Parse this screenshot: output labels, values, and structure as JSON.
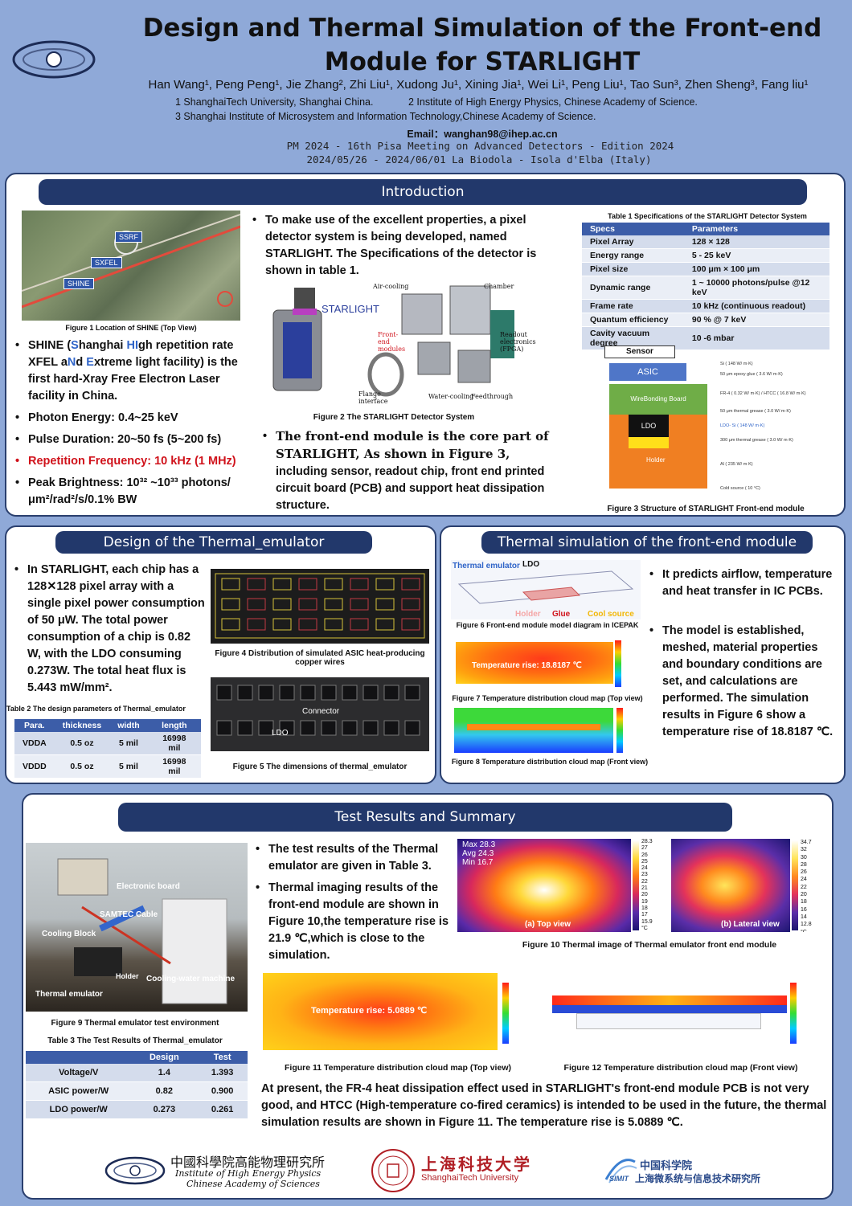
{
  "header": {
    "title_line1": "Design and Thermal Simulation of the Front-end",
    "title_line2": "Module for STARLIGHT",
    "authors": "Han Wang¹, Peng Peng¹, Jie Zhang², Zhi Liu¹, Xudong Ju¹, Xining Jia¹, Wei Li¹, Peng Liu¹, Tao Sun³, Zhen Sheng³, Fang liu¹",
    "affil1": "1 ShanghaiTech University, Shanghai China.",
    "affil2": "2 Institute of High Energy Physics, Chinese Academy of Science.",
    "affil3": "3 Shanghai Institute of Microsystem and Information Technology,Chinese Academy of Science.",
    "email_label": "Email：",
    "email": "wanghan98@ihep.ac.cn",
    "conf1": "PM 2024 - 16th Pisa Meeting on Advanced Detectors - Edition 2024",
    "conf2": "2024/05/26 - 2024/06/01   La Biodola - Isola d'Elba (Italy)"
  },
  "intro": {
    "title": "Introduction",
    "fig1_caption": "Figure 1 Location of SHINE (Top View)",
    "map_labels": [
      "SSRF",
      "SXFEL",
      "SHINE"
    ],
    "shine_bullet": [
      "SHINE (",
      "S",
      "hanghai ",
      "HI",
      "gh repetition rate XFEL a",
      "N",
      "d ",
      "E",
      "xtreme light facility) is the first hard-Xray Free Electron Laser facility in China."
    ],
    "bullets": [
      "Photon Energy: 0.4~25 keV",
      "Pulse Duration: 20~50 fs (5~200 fs)",
      "Repetition Frequency: 10 kHz (1 MHz)",
      "Peak Brightness: 10³² ~10³³ photons/μm²/rad²/s/0.1% BW"
    ],
    "mid_bullet": "To make use of the excellent properties, a pixel detector system is being developed, named STARLIGHT. The Specifications of the detector is shown in table 1.",
    "fig2_labels": [
      "Air-cooling",
      "Chamber",
      "STARLIGHT",
      "Front-end modules",
      "Readout electronics (FPGA)",
      "Flange interface",
      "Water-cooling",
      "Feedthrough"
    ],
    "fig2_caption": "Figure 2 The STARLIGHT Detector System",
    "front_bullet_a": "The front-end module is the core part of STARLIGHT, As shown in Figure 3,",
    "front_bullet_b": "including sensor, readout chip, front end printed circuit board (PCB) and support heat dissipation structure.",
    "table1_caption": "Table 1 Specifications of the STARLIGHT Detector System",
    "table1_headers": [
      "Specs",
      "Parameters"
    ],
    "table1_rows": [
      [
        "Pixel Array",
        "128 × 128"
      ],
      [
        "Energy range",
        "5 - 25 keV"
      ],
      [
        "Pixel size",
        "100 μm × 100 μm"
      ],
      [
        "Dynamic range",
        "1 ~ 10000 photons/pulse @12 keV"
      ],
      [
        "Frame rate",
        "10 kHz (continuous readout)"
      ],
      [
        "Quantum efficiency",
        " 90 % @ 7 keV"
      ],
      [
        "Cavity vacuum degree",
        "10 -6 mbar"
      ]
    ],
    "fig3_labels": {
      "sensor": "Sensor",
      "asic": "ASIC",
      "board": "WireBonding  Board",
      "ldo": "LDO",
      "holder": "Holder",
      "notes": [
        "Si ( 148 W/ m·K)",
        "50 μm epoxy glue ( 3.6 W/ m·K)",
        "FR-4 ( 0.32 W/ m·K) / HTCC ( 16.8 W/ m·K)",
        "50 μm thermal grease ( 3.0 W/ m·K)",
        "LDO- Si ( 148 W/ m·K)",
        "300 μm thermal grease ( 3.0 W/ m·K)",
        "Al ( 235 W/ m·K)",
        "Cold source ( 10 °C)"
      ]
    },
    "fig3_caption": "Figure 3  Structure of STARLIGHT Front-end module"
  },
  "emulator": {
    "title": "Design of the Thermal_emulator",
    "bullet": "In STARLIGHT, each chip has a 128✕128 pixel array with a single pixel power consumption of 50 μW. The total power consumption of a chip is 0.82 W, with the LDO consuming 0.273W. The total heat flux is 5.443 mW/mm².",
    "fig4_caption": "Figure 4 Distribution of simulated ASIC heat-producing copper wires",
    "table2_caption": "Table 2 The design parameters of Thermal_emulator",
    "table2_headers": [
      "Para.",
      "thickness",
      "width",
      "length"
    ],
    "table2_rows": [
      [
        "VDDA",
        "0.5 oz",
        "5 mil",
        "16998 mil"
      ],
      [
        "VDDD",
        "0.5 oz",
        "5 mil",
        "16998 mil"
      ]
    ],
    "fig5_labels": [
      "Connector",
      "LDO"
    ],
    "fig5_caption": "Figure 5 The dimensions of thermal_emulator"
  },
  "thermal": {
    "title": "Thermal simulation of the front-end module",
    "fig6_labels": [
      "Thermal emulator",
      "LDO",
      "Holder",
      "Glue",
      "Cool source"
    ],
    "fig6_caption": "Figure 6 Front-end module model diagram in ICEPAK",
    "fig7_label": "Temperature rise: 18.8187 ℃",
    "fig7_caption": "Figure 7 Temperature distribution cloud map (Top view)",
    "fig8_caption": "Figure 8 Temperature distribution cloud map (Front view)",
    "bullet1": "It predicts airflow, temperature and heat transfer in IC PCBs.",
    "bullet2": "The model is established, meshed, material properties and boundary conditions are set, and calculations are performed. The simulation results in Figure 6 show a temperature rise of 18.8187 ℃."
  },
  "results": {
    "title": "Test  Results and  Summary",
    "photo_labels": [
      "Electronic board",
      "SAMTEC Cable",
      "Cooling Block",
      "Holder",
      "Cooling-water machine",
      "Thermal emulator"
    ],
    "fig9_caption": "Figure 9 Thermal emulator test environment",
    "table3_caption": "Table 3 The Test  Results of Thermal_emulator",
    "table3_headers": [
      "",
      "Design",
      "Test"
    ],
    "table3_rows": [
      [
        "Voltage/V",
        "1.4",
        "1.393"
      ],
      [
        "ASIC power/W",
        "0.82",
        "0.900"
      ],
      [
        "LDO power/W",
        "0.273",
        "0.261"
      ]
    ],
    "bullet1": "The test results of the Thermal emulator are given in Table 3.",
    "bullet2": "Thermal imaging results of the front-end module are shown in Figure 10,the temperature rise is 21.9 ℃,which is close to the simulation.",
    "fig10a_label": "(a) Top view",
    "fig10b_label": "(b) Lateral view",
    "fig10a_stats": [
      "Max 28.3",
      "Avg 24.3",
      "Min 16.7"
    ],
    "fig10a_ticks": [
      "28.3",
      "27",
      "26",
      "25",
      "24",
      "23",
      "22",
      "21",
      "20",
      "19",
      "18",
      "17",
      "15.9",
      "°C"
    ],
    "fig10b_ticks": [
      "34.7",
      "32",
      "30",
      "28",
      "26",
      "24",
      "22",
      "20",
      "18",
      "16",
      "14",
      "12.8",
      "°C"
    ],
    "fig10_caption": "Figure 10 Thermal image of Thermal emulator front end module",
    "fig11_label": "Temperature rise: 5.0889 ℃",
    "fig11_caption": "Figure 11 Temperature distribution cloud map (Top view)",
    "fig12_caption": "Figure 12 Temperature distribution cloud map (Front view)",
    "summary": "At present, the FR-4 heat dissipation effect used in STARLIGHT's front-end module PCB is not very good, and HTCC (High-temperature co-fired ceramics) is intended to be used in the future, the thermal simulation results are shown in Figure 11. The temperature rise is 5.0889 ℃."
  },
  "footer": {
    "ihep_cn": "中國科學院高能物理研究所",
    "ihep_en1": "Institute of High Energy Physics",
    "ihep_en2": "Chinese Academy of Sciences",
    "stu_cn": "上海科技大学",
    "stu_en": "ShanghaiTech University",
    "simit_cn1": "中国科学院",
    "simit_cn2": "上海微系统与信息技术研究所",
    "simit_logo": "SIMIT"
  },
  "colors": {
    "bg": "#8fa9d8",
    "section": "#22386b",
    "table_head": "#3c5da8",
    "highlight_red": "#d0121b",
    "highlight_blue": "#2f64c8"
  }
}
